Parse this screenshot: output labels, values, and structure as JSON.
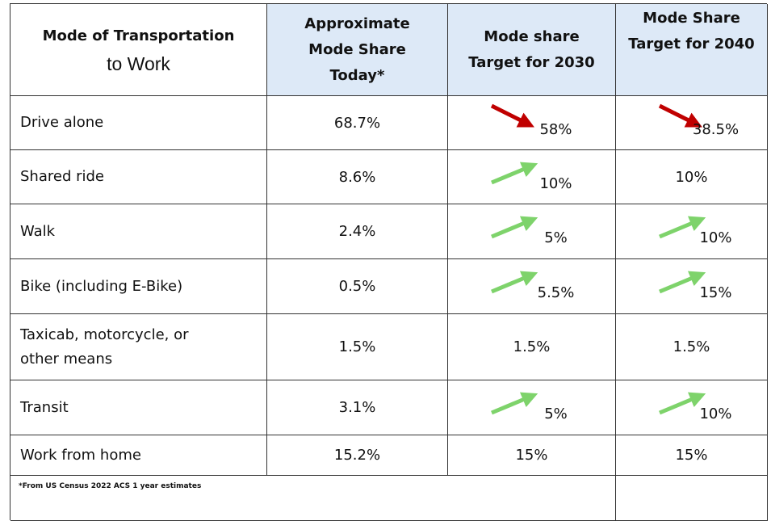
{
  "table": {
    "header": [
      [
        "Mode of Transportation",
        "to Work"
      ],
      [
        "Approximate",
        "Mode Share",
        "Today*"
      ],
      [
        "Mode share",
        "Target for 2030"
      ],
      [
        "Mode Share",
        "Target for 2040"
      ]
    ],
    "rows": [
      [
        "Drive alone",
        "68.7%",
        "58%",
        "38.5%"
      ],
      [
        "Shared ride",
        "8.6%",
        "10%",
        "10%"
      ],
      [
        "Walk",
        "2.4%",
        "5%",
        "10%"
      ],
      [
        "Bike (including E-Bike)",
        "0.5%",
        "5.5%",
        "15%"
      ],
      [
        "Taxicab, motorcycle, or other means",
        "1.5%",
        "1.5%",
        "1.5%"
      ],
      [
        "Transit",
        "3.1%",
        "5%",
        "10%"
      ],
      [
        "Work from home",
        "15.2%",
        "15%",
        "15%"
      ]
    ],
    "footnote": "*From US Census 2022 ACS 1 year estimates"
  }
}
